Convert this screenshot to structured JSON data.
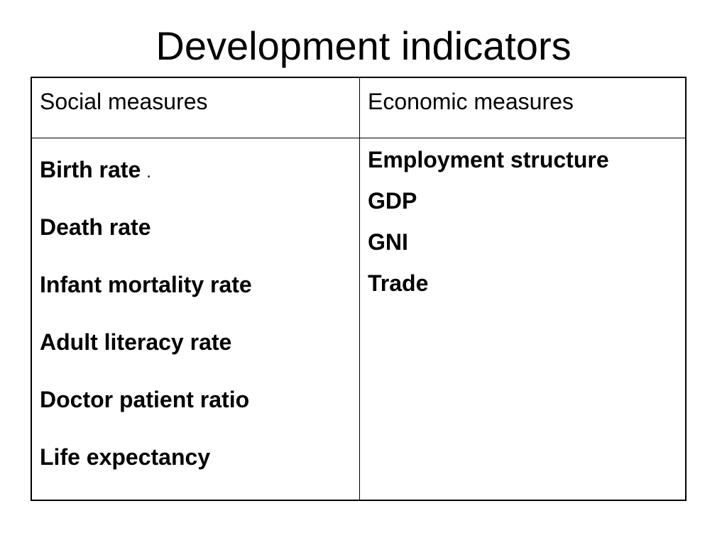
{
  "title": "Development indicators",
  "table": {
    "headers": {
      "social": "Social measures",
      "economic": "Economic measures"
    },
    "social_measures": [
      {
        "label": "Birth rate",
        "suffix": "."
      },
      {
        "label": "Death rate",
        "suffix": ""
      },
      {
        "label": "Infant mortality rate",
        "suffix": ""
      },
      {
        "label": "Adult literacy rate",
        "suffix": ""
      },
      {
        "label": "Doctor patient ratio",
        "suffix": ""
      },
      {
        "label": "Life expectancy",
        "suffix": ""
      }
    ],
    "economic_measures": [
      {
        "label": "Employment structure"
      },
      {
        "label": "GDP"
      },
      {
        "label": "GNI"
      },
      {
        "label": "Trade"
      }
    ]
  }
}
